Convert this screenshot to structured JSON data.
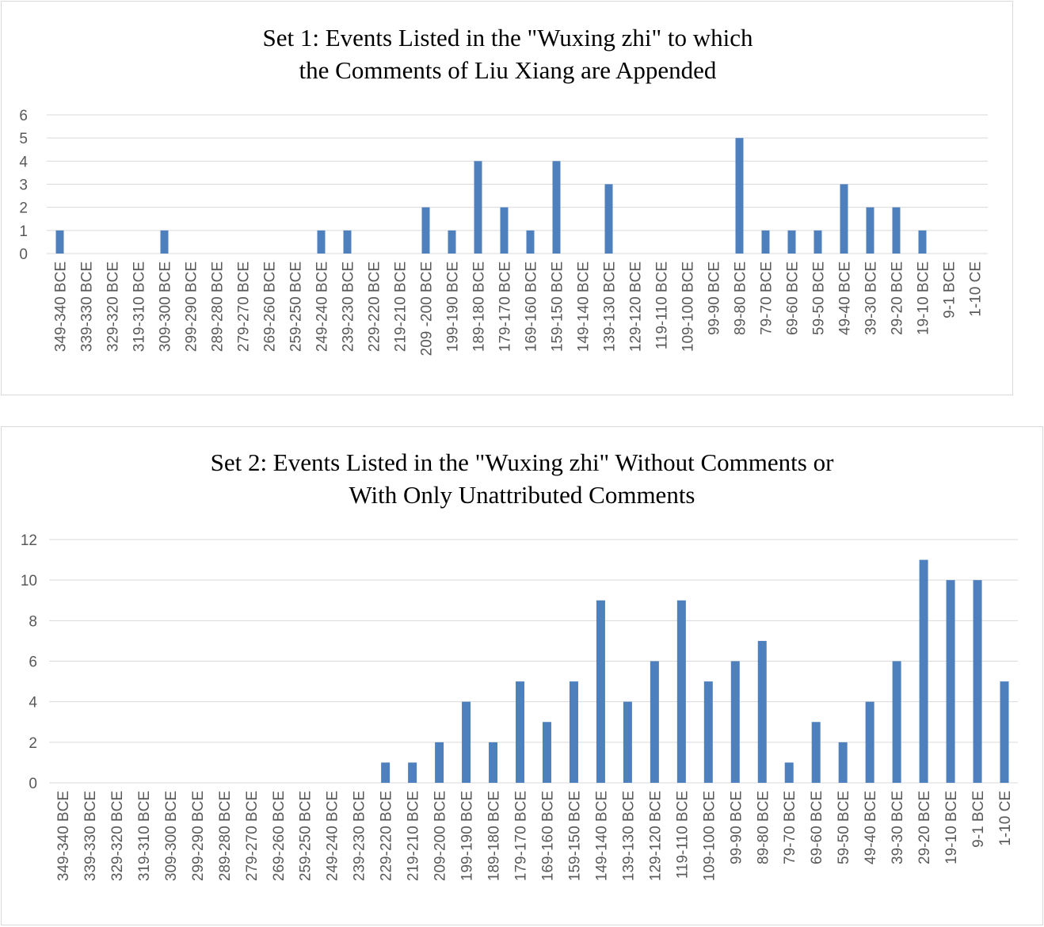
{
  "chart_data": [
    {
      "type": "bar",
      "title_lines": [
        "Set 1: Events Listed in the \"Wuxing zhi\" to which",
        "the Comments of Liu Xiang are Appended"
      ],
      "xlabel": "",
      "ylabel": "",
      "ylim": [
        0,
        6
      ],
      "yticks": [
        0,
        1,
        2,
        3,
        4,
        5,
        6
      ],
      "grid": true,
      "legend": "none",
      "color": "#4e80bd",
      "categories": [
        "349-340 BCE",
        "339-330 BCE",
        "329-320 BCE",
        "319-310 BCE",
        "309-300 BCE",
        "299-290 BCE",
        "289-280 BCE",
        "279-270 BCE",
        "269-260 BCE",
        "259-250 BCE",
        "249-240 BCE",
        "239-230 BCE",
        "229-220 BCE",
        "219-210 BCE",
        "209 -200 BCE",
        "199-190 BCE",
        "189-180 BCE",
        "179-170 BCE",
        "169-160 BCE",
        "159-150 BCE",
        "149-140 BCE",
        "139-130 BCE",
        "129-120 BCE",
        "119-110 BCE",
        "109-100 BCE",
        "99-90 BCE",
        "89-80 BCE",
        "79-70 BCE",
        "69-60 BCE",
        "59-50 BCE",
        "49-40 BCE",
        "39-30 BCE",
        "29-20 BCE",
        "19-10 BCE",
        "9-1 BCE",
        "1-10 CE"
      ],
      "values": [
        1,
        0,
        0,
        0,
        1,
        0,
        0,
        0,
        0,
        0,
        1,
        1,
        0,
        0,
        2,
        1,
        4,
        2,
        1,
        4,
        0,
        3,
        0,
        0,
        0,
        0,
        5,
        1,
        1,
        1,
        3,
        2,
        2,
        1,
        0,
        0
      ]
    },
    {
      "type": "bar",
      "title_lines": [
        "Set 2: Events Listed in the \"Wuxing zhi\" Without Comments or",
        "With Only Unattributed Comments"
      ],
      "xlabel": "",
      "ylabel": "",
      "ylim": [
        0,
        12
      ],
      "yticks": [
        0,
        2,
        4,
        6,
        8,
        10,
        12
      ],
      "grid": true,
      "legend": "none",
      "color": "#4e80bd",
      "categories": [
        "349-340 BCE",
        "339-330 BCE",
        "329-320 BCE",
        "319-310 BCE",
        "309-300 BCE",
        "299-290 BCE",
        "289-280 BCE",
        "279-270 BCE",
        "269-260 BCE",
        "259-250 BCE",
        "249-240 BCE",
        "239-230 BCE",
        "229-220 BCE",
        "219-210 BCE",
        "209-200 BCE",
        "199-190 BCE",
        "189-180 BCE",
        "179-170 BCE",
        "169-160 BCE",
        "159-150 BCE",
        "149-140 BCE",
        "139-130 BCE",
        "129-120 BCE",
        "119-110 BCE",
        "109-100 BCE",
        "99-90 BCE",
        "89-80 BCE",
        "79-70 BCE",
        "69-60 BCE",
        "59-50 BCE",
        "49-40 BCE",
        "39-30 BCE",
        "29-20 BCE",
        "19-10 BCE",
        "9-1 BCE",
        "1-10 CE"
      ],
      "values": [
        0,
        0,
        0,
        0,
        0,
        0,
        0,
        0,
        0,
        0,
        0,
        0,
        1,
        1,
        2,
        4,
        2,
        5,
        3,
        5,
        9,
        4,
        6,
        9,
        5,
        6,
        7,
        1,
        3,
        2,
        4,
        6,
        11,
        10,
        10,
        5
      ]
    }
  ]
}
